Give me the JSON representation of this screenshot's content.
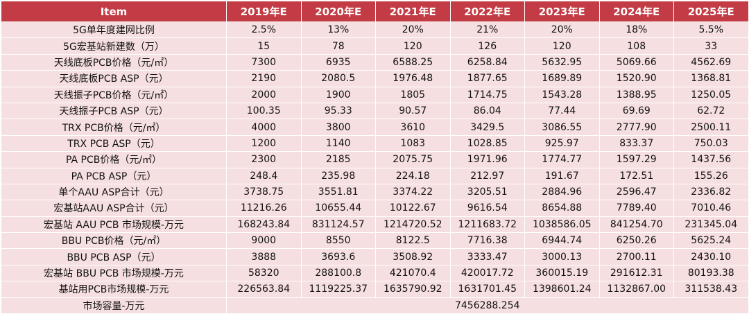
{
  "table": {
    "headers": [
      "Item",
      "2019年E",
      "2020年E",
      "2021年E",
      "2022年E",
      "2023年E",
      "2024年E",
      "2025年E"
    ],
    "rows": [
      {
        "label": "5G单年度建网比例",
        "values": [
          "2.5%",
          "13%",
          "20%",
          "21%",
          "20%",
          "18%",
          "5.5%"
        ]
      },
      {
        "label": "5G宏基站新建数（万）",
        "values": [
          "15",
          "78",
          "120",
          "126",
          "120",
          "108",
          "33"
        ]
      },
      {
        "label": "天线底板PCB价格（元/㎡）",
        "values": [
          "7300",
          "6935",
          "6588.25",
          "6258.84",
          "5632.95",
          "5069.66",
          "4562.69"
        ]
      },
      {
        "label": "天线底板PCB ASP（元）",
        "values": [
          "2190",
          "2080.5",
          "1976.48",
          "1877.65",
          "1689.89",
          "1520.90",
          "1368.81"
        ]
      },
      {
        "label": "天线振子PCB价格（元/㎡）",
        "values": [
          "2000",
          "1900",
          "1805",
          "1714.75",
          "1543.28",
          "1388.95",
          "1250.05"
        ]
      },
      {
        "label": "天线振子PCB ASP（元）",
        "values": [
          "100.35",
          "95.33",
          "90.57",
          "86.04",
          "77.44",
          "69.69",
          "62.72"
        ]
      },
      {
        "label": "TRX PCB价格（元/㎡）",
        "values": [
          "4000",
          "3800",
          "3610",
          "3429.5",
          "3086.55",
          "2777.90",
          "2500.11"
        ]
      },
      {
        "label": "TRX PCB ASP（元）",
        "values": [
          "1200",
          "1140",
          "1083",
          "1028.85",
          "925.97",
          "833.37",
          "750.03"
        ]
      },
      {
        "label": "PA PCB价格（元/㎡）",
        "values": [
          "2300",
          "2185",
          "2075.75",
          "1971.96",
          "1774.77",
          "1597.29",
          "1437.56"
        ]
      },
      {
        "label": "PA PCB ASP（元）",
        "values": [
          "248.4",
          "235.98",
          "224.18",
          "212.97",
          "191.67",
          "172.51",
          "155.26"
        ]
      },
      {
        "label": "单个AAU ASP合计（元）",
        "values": [
          "3738.75",
          "3551.81",
          "3374.22",
          "3205.51",
          "2884.96",
          "2596.47",
          "2336.82"
        ]
      },
      {
        "label": "宏基站AAU ASP合计（元）",
        "values": [
          "11216.26",
          "10655.44",
          "10122.67",
          "9616.54",
          "8654.88",
          "7789.40",
          "7010.46"
        ]
      },
      {
        "label": "宏基站 AAU PCB 市场规模-万元",
        "values": [
          "168243.84",
          "831124.57",
          "1214720.52",
          "1211683.72",
          "1038586.05",
          "841254.70",
          "231345.04"
        ]
      },
      {
        "label": "BBU PCB价格（元/㎡）",
        "values": [
          "9000",
          "8550",
          "8122.5",
          "7716.38",
          "6944.74",
          "6250.26",
          "5625.24"
        ]
      },
      {
        "label": "BBU PCB ASP（元）",
        "values": [
          "3888",
          "3693.6",
          "3508.92",
          "3333.47",
          "3000.13",
          "2700.11",
          "2430.10"
        ]
      },
      {
        "label": "宏基站 BBU PCB 市场规模-万元",
        "values": [
          "58320",
          "288100.8",
          "421070.4",
          "420017.72",
          "360015.19",
          "291612.31",
          "80193.38"
        ]
      },
      {
        "label": "基站用PCB市场规模-万元",
        "values": [
          "226563.84",
          "1119225.37",
          "1635790.92",
          "1631701.45",
          "1398601.24",
          "1132867.00",
          "311538.43"
        ]
      }
    ],
    "total": {
      "label": "市场容量-万元",
      "value": "7456288.254"
    }
  }
}
